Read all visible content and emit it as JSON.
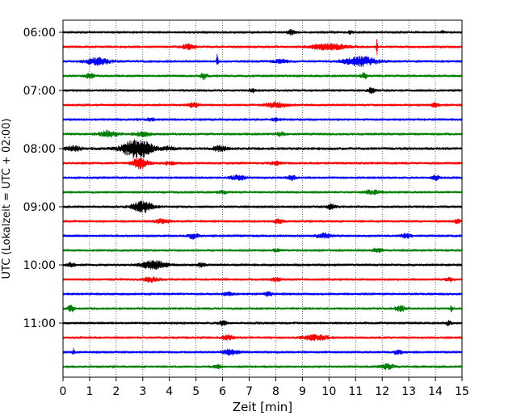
{
  "chart_data": {
    "type": "line",
    "title": "",
    "xlabel": "Zeit  [min]",
    "ylabel": "UTC (Lokalzeit = UTC + 02:00)",
    "xlim": [
      0,
      15
    ],
    "x_ticks": [
      0,
      1,
      2,
      3,
      4,
      5,
      6,
      7,
      8,
      9,
      10,
      11,
      12,
      13,
      14,
      15
    ],
    "x_tick_labels": [
      "0",
      "1",
      "2",
      "3",
      "4",
      "5",
      "6",
      "7",
      "8",
      "9",
      "10",
      "11",
      "12",
      "13",
      "14",
      "15"
    ],
    "grid": "vertical-dotted",
    "minutes_per_trace": 15,
    "trace_colors": [
      "#000000",
      "#ff0000",
      "#0000ff",
      "#008000"
    ],
    "y_tick_labels": [
      {
        "trace_index": 0,
        "label": "06:00"
      },
      {
        "trace_index": 4,
        "label": "07:00"
      },
      {
        "trace_index": 8,
        "label": "08:00"
      },
      {
        "trace_index": 12,
        "label": "09:00"
      },
      {
        "trace_index": 16,
        "label": "10:00"
      },
      {
        "trace_index": 20,
        "label": "11:00"
      }
    ],
    "traces": [
      {
        "start": "06:00",
        "color": "#000000",
        "noise": 0.5,
        "events": [
          {
            "t": 8.6,
            "amp": 1.3,
            "w": 0.15
          },
          {
            "t": 10.8,
            "amp": 0.8,
            "w": 0.12
          },
          {
            "t": 14.3,
            "amp": 0.7,
            "w": 0.1
          }
        ]
      },
      {
        "start": "06:15",
        "color": "#ff0000",
        "noise": 0.6,
        "events": [
          {
            "t": 4.7,
            "amp": 1.1,
            "w": 0.25
          },
          {
            "t": 10.0,
            "amp": 1.4,
            "w": 0.7
          },
          {
            "t": 11.8,
            "amp": 4.5,
            "w": 0.02
          }
        ]
      },
      {
        "start": "06:30",
        "color": "#0000ff",
        "noise": 0.6,
        "events": [
          {
            "t": 1.3,
            "amp": 1.6,
            "w": 0.45
          },
          {
            "t": 5.8,
            "amp": 3.5,
            "w": 0.03
          },
          {
            "t": 11.2,
            "amp": 2.2,
            "w": 0.6
          },
          {
            "t": 8.2,
            "amp": 0.8,
            "w": 0.3
          }
        ]
      },
      {
        "start": "06:45",
        "color": "#008000",
        "noise": 0.6,
        "events": [
          {
            "t": 1.0,
            "amp": 1.3,
            "w": 0.15
          },
          {
            "t": 5.3,
            "amp": 1.6,
            "w": 0.12
          },
          {
            "t": 11.3,
            "amp": 1.4,
            "w": 0.12
          }
        ]
      },
      {
        "start": "07:00",
        "color": "#000000",
        "noise": 0.55,
        "events": [
          {
            "t": 7.1,
            "amp": 0.9,
            "w": 0.12
          },
          {
            "t": 11.6,
            "amp": 1.2,
            "w": 0.15
          }
        ]
      },
      {
        "start": "07:15",
        "color": "#ff0000",
        "noise": 0.55,
        "events": [
          {
            "t": 4.9,
            "amp": 1.2,
            "w": 0.2
          },
          {
            "t": 8.0,
            "amp": 1.3,
            "w": 0.4
          },
          {
            "t": 14.0,
            "amp": 1.1,
            "w": 0.15
          }
        ]
      },
      {
        "start": "07:30",
        "color": "#0000ff",
        "noise": 0.55,
        "events": [
          {
            "t": 8.0,
            "amp": 0.9,
            "w": 0.15
          },
          {
            "t": 3.3,
            "amp": 0.6,
            "w": 0.2
          }
        ]
      },
      {
        "start": "07:45",
        "color": "#008000",
        "noise": 0.6,
        "events": [
          {
            "t": 1.7,
            "amp": 1.5,
            "w": 0.35
          },
          {
            "t": 3.0,
            "amp": 1.0,
            "w": 0.3
          },
          {
            "t": 8.2,
            "amp": 0.8,
            "w": 0.2
          }
        ]
      },
      {
        "start": "08:00",
        "color": "#000000",
        "noise": 0.7,
        "events": [
          {
            "t": 2.8,
            "amp": 4.5,
            "w": 0.55
          },
          {
            "t": 0.4,
            "amp": 1.0,
            "w": 0.3
          },
          {
            "t": 4.0,
            "amp": 0.9,
            "w": 0.2
          },
          {
            "t": 5.9,
            "amp": 1.1,
            "w": 0.25
          }
        ]
      },
      {
        "start": "08:15",
        "color": "#ff0000",
        "noise": 0.6,
        "events": [
          {
            "t": 2.9,
            "amp": 2.5,
            "w": 0.3
          },
          {
            "t": 4.0,
            "amp": 0.8,
            "w": 0.2
          },
          {
            "t": 8.0,
            "amp": 0.8,
            "w": 0.2
          }
        ]
      },
      {
        "start": "08:30",
        "color": "#0000ff",
        "noise": 0.55,
        "events": [
          {
            "t": 6.6,
            "amp": 1.2,
            "w": 0.3
          },
          {
            "t": 8.6,
            "amp": 1.0,
            "w": 0.2
          },
          {
            "t": 14.0,
            "amp": 1.2,
            "w": 0.15
          }
        ]
      },
      {
        "start": "08:45",
        "color": "#008000",
        "noise": 0.55,
        "events": [
          {
            "t": 11.6,
            "amp": 1.0,
            "w": 0.3
          },
          {
            "t": 6.0,
            "amp": 0.6,
            "w": 0.2
          }
        ]
      },
      {
        "start": "09:00",
        "color": "#000000",
        "noise": 0.55,
        "events": [
          {
            "t": 3.0,
            "amp": 2.7,
            "w": 0.4
          },
          {
            "t": 10.1,
            "amp": 1.2,
            "w": 0.15
          }
        ]
      },
      {
        "start": "09:15",
        "color": "#ff0000",
        "noise": 0.55,
        "events": [
          {
            "t": 3.7,
            "amp": 1.0,
            "w": 0.3
          },
          {
            "t": 8.1,
            "amp": 0.9,
            "w": 0.2
          },
          {
            "t": 14.8,
            "amp": 1.0,
            "w": 0.15
          }
        ]
      },
      {
        "start": "09:30",
        "color": "#0000ff",
        "noise": 0.55,
        "events": [
          {
            "t": 4.9,
            "amp": 1.3,
            "w": 0.2
          },
          {
            "t": 9.8,
            "amp": 1.1,
            "w": 0.3
          },
          {
            "t": 12.9,
            "amp": 1.0,
            "w": 0.2
          }
        ]
      },
      {
        "start": "09:45",
        "color": "#008000",
        "noise": 0.55,
        "events": [
          {
            "t": 11.8,
            "amp": 1.0,
            "w": 0.2
          },
          {
            "t": 8.0,
            "amp": 0.6,
            "w": 0.2
          }
        ]
      },
      {
        "start": "10:00",
        "color": "#000000",
        "noise": 0.6,
        "events": [
          {
            "t": 3.4,
            "amp": 2.1,
            "w": 0.45
          },
          {
            "t": 0.3,
            "amp": 1.0,
            "w": 0.15
          },
          {
            "t": 5.2,
            "amp": 1.0,
            "w": 0.15
          }
        ]
      },
      {
        "start": "10:15",
        "color": "#ff0000",
        "noise": 0.55,
        "events": [
          {
            "t": 3.3,
            "amp": 1.2,
            "w": 0.3
          },
          {
            "t": 8.0,
            "amp": 0.8,
            "w": 0.2
          },
          {
            "t": 14.5,
            "amp": 0.8,
            "w": 0.15
          }
        ]
      },
      {
        "start": "10:30",
        "color": "#0000ff",
        "noise": 0.55,
        "events": [
          {
            "t": 7.7,
            "amp": 1.1,
            "w": 0.15
          },
          {
            "t": 6.2,
            "amp": 0.8,
            "w": 0.2
          }
        ]
      },
      {
        "start": "10:45",
        "color": "#008000",
        "noise": 0.6,
        "events": [
          {
            "t": 0.3,
            "amp": 1.4,
            "w": 0.12
          },
          {
            "t": 12.7,
            "amp": 1.3,
            "w": 0.2
          },
          {
            "t": 14.6,
            "amp": 1.6,
            "w": 0.05
          }
        ]
      },
      {
        "start": "11:00",
        "color": "#000000",
        "noise": 0.55,
        "events": [
          {
            "t": 6.0,
            "amp": 1.1,
            "w": 0.15
          },
          {
            "t": 14.5,
            "amp": 1.1,
            "w": 0.1
          }
        ]
      },
      {
        "start": "11:15",
        "color": "#ff0000",
        "noise": 0.55,
        "events": [
          {
            "t": 6.2,
            "amp": 1.2,
            "w": 0.2
          },
          {
            "t": 9.5,
            "amp": 1.3,
            "w": 0.5
          }
        ]
      },
      {
        "start": "11:30",
        "color": "#0000ff",
        "noise": 0.55,
        "events": [
          {
            "t": 0.4,
            "amp": 2.0,
            "w": 0.05
          },
          {
            "t": 6.3,
            "amp": 1.4,
            "w": 0.3
          },
          {
            "t": 12.6,
            "amp": 1.0,
            "w": 0.2
          }
        ]
      },
      {
        "start": "11:45",
        "color": "#008000",
        "noise": 0.55,
        "events": [
          {
            "t": 12.2,
            "amp": 1.3,
            "w": 0.25
          },
          {
            "t": 5.8,
            "amp": 0.7,
            "w": 0.2
          }
        ]
      }
    ]
  }
}
